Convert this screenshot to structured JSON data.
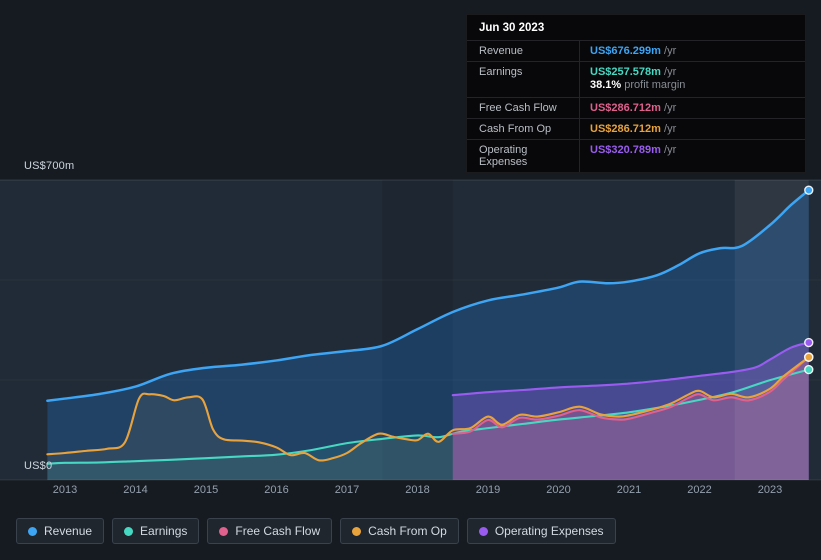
{
  "tooltip": {
    "date": "Jun 30 2023",
    "rows": [
      {
        "label": "Revenue",
        "value": "US$676.299m",
        "suffix": "/yr",
        "series": "revenue"
      },
      {
        "label": "Earnings",
        "value": "US$257.578m",
        "suffix": "/yr",
        "series": "earnings",
        "sub_bold": "38.1%",
        "sub_text": "profit margin"
      },
      {
        "label": "Free Cash Flow",
        "value": "US$286.712m",
        "suffix": "/yr",
        "series": "free_cash_flow"
      },
      {
        "label": "Cash From Op",
        "value": "US$286.712m",
        "suffix": "/yr",
        "series": "cash_from_op"
      },
      {
        "label": "Operating Expenses",
        "value": "US$320.789m",
        "suffix": "/yr",
        "series": "operating_expenses"
      }
    ]
  },
  "legend": [
    {
      "label": "Revenue",
      "series": "revenue"
    },
    {
      "label": "Earnings",
      "series": "earnings"
    },
    {
      "label": "Free Cash Flow",
      "series": "free_cash_flow"
    },
    {
      "label": "Cash From Op",
      "series": "cash_from_op"
    },
    {
      "label": "Operating Expenses",
      "series": "operating_expenses"
    }
  ],
  "chart_data": {
    "type": "area",
    "title": "",
    "xlabel": "",
    "ylabel": "US$ millions",
    "ylim": [
      0,
      700
    ],
    "y_tick_labels": {
      "top": "US$700m",
      "bottom": "US$0"
    },
    "x_ticks": [
      "2013",
      "2014",
      "2015",
      "2016",
      "2017",
      "2018",
      "2019",
      "2020",
      "2021",
      "2022",
      "2023"
    ],
    "x_range": [
      2012.75,
      2023.55
    ],
    "highlight_band": {
      "from": 2022.5,
      "to": 2023.55
    },
    "dark_band": {
      "from": 2017.5,
      "to": 2018.5
    },
    "series": [
      {
        "name": "Revenue",
        "key": "revenue",
        "color": "#3da5f4",
        "fill": "rgba(33,118,210,0.30)",
        "unit": "US$m",
        "points": [
          [
            2012.75,
            185
          ],
          [
            2013,
            190
          ],
          [
            2013.5,
            201
          ],
          [
            2014,
            218
          ],
          [
            2014.5,
            248
          ],
          [
            2015,
            262
          ],
          [
            2015.5,
            269
          ],
          [
            2016,
            279
          ],
          [
            2016.5,
            292
          ],
          [
            2017,
            301
          ],
          [
            2017.5,
            313
          ],
          [
            2018,
            352
          ],
          [
            2018.5,
            392
          ],
          [
            2019,
            419
          ],
          [
            2019.5,
            433
          ],
          [
            2020,
            449
          ],
          [
            2020.3,
            463
          ],
          [
            2020.7,
            459
          ],
          [
            2021,
            463
          ],
          [
            2021.4,
            478
          ],
          [
            2021.7,
            501
          ],
          [
            2022,
            529
          ],
          [
            2022.3,
            541
          ],
          [
            2022.6,
            546
          ],
          [
            2023,
            595
          ],
          [
            2023.3,
            642
          ],
          [
            2023.55,
            676.299
          ]
        ]
      },
      {
        "name": "Earnings",
        "key": "earnings",
        "color": "#46d8c2",
        "fill": "rgba(70,216,194,0.10)",
        "unit": "US$m",
        "points": [
          [
            2012.75,
            38
          ],
          [
            2013,
            40
          ],
          [
            2013.5,
            41
          ],
          [
            2014,
            44
          ],
          [
            2014.5,
            47
          ],
          [
            2015,
            51
          ],
          [
            2015.5,
            55
          ],
          [
            2016,
            59
          ],
          [
            2016.5,
            70
          ],
          [
            2017,
            86
          ],
          [
            2017.5,
            96
          ],
          [
            2018,
            104
          ],
          [
            2018.3,
            100
          ],
          [
            2018.6,
            112
          ],
          [
            2019,
            121
          ],
          [
            2019.5,
            131
          ],
          [
            2020,
            141
          ],
          [
            2020.5,
            149
          ],
          [
            2021,
            158
          ],
          [
            2021.5,
            171
          ],
          [
            2022,
            187
          ],
          [
            2022.5,
            206
          ],
          [
            2023,
            233
          ],
          [
            2023.55,
            257.578
          ]
        ]
      },
      {
        "name": "Free Cash Flow",
        "key": "free_cash_flow",
        "color": "#e0608e",
        "fill": "rgba(224,96,142,0.25)",
        "unit": "US$m",
        "points": [
          [
            2018.5,
            108
          ],
          [
            2018.75,
            113
          ],
          [
            2019,
            140
          ],
          [
            2019.2,
            123
          ],
          [
            2019.45,
            145
          ],
          [
            2019.7,
            141
          ],
          [
            2020,
            150
          ],
          [
            2020.3,
            163
          ],
          [
            2020.6,
            146
          ],
          [
            2020.85,
            141
          ],
          [
            2021,
            143
          ],
          [
            2021.3,
            156
          ],
          [
            2021.6,
            171
          ],
          [
            2021.85,
            192
          ],
          [
            2022,
            200
          ],
          [
            2022.2,
            186
          ],
          [
            2022.45,
            193
          ],
          [
            2022.7,
            186
          ],
          [
            2023,
            206
          ],
          [
            2023.2,
            236
          ],
          [
            2023.55,
            286.712
          ]
        ]
      },
      {
        "name": "Cash From Op",
        "key": "cash_from_op",
        "color": "#e8a33d",
        "fill": "rgba(232,163,61,0.08)",
        "unit": "US$m",
        "points": [
          [
            2012.75,
            60
          ],
          [
            2013,
            63
          ],
          [
            2013.3,
            68
          ],
          [
            2013.6,
            73
          ],
          [
            2013.85,
            88
          ],
          [
            2014.05,
            190
          ],
          [
            2014.2,
            200
          ],
          [
            2014.4,
            196
          ],
          [
            2014.55,
            186
          ],
          [
            2014.75,
            193
          ],
          [
            2014.95,
            188
          ],
          [
            2015.1,
            118
          ],
          [
            2015.25,
            95
          ],
          [
            2015.5,
            92
          ],
          [
            2015.75,
            88
          ],
          [
            2016,
            76
          ],
          [
            2016.2,
            58
          ],
          [
            2016.4,
            63
          ],
          [
            2016.6,
            46
          ],
          [
            2016.8,
            51
          ],
          [
            2017,
            63
          ],
          [
            2017.2,
            86
          ],
          [
            2017.45,
            108
          ],
          [
            2017.65,
            101
          ],
          [
            2017.85,
            95
          ],
          [
            2018,
            93
          ],
          [
            2018.15,
            108
          ],
          [
            2018.3,
            89
          ],
          [
            2018.5,
            116
          ],
          [
            2018.75,
            121
          ],
          [
            2019,
            148
          ],
          [
            2019.2,
            129
          ],
          [
            2019.45,
            152
          ],
          [
            2019.7,
            148
          ],
          [
            2020,
            158
          ],
          [
            2020.3,
            171
          ],
          [
            2020.6,
            153
          ],
          [
            2020.85,
            148
          ],
          [
            2021,
            151
          ],
          [
            2021.3,
            163
          ],
          [
            2021.6,
            179
          ],
          [
            2021.85,
            200
          ],
          [
            2022,
            208
          ],
          [
            2022.2,
            193
          ],
          [
            2022.45,
            201
          ],
          [
            2022.7,
            193
          ],
          [
            2023,
            213
          ],
          [
            2023.2,
            243
          ],
          [
            2023.55,
            286.712
          ]
        ]
      },
      {
        "name": "Operating Expenses",
        "key": "operating_expenses",
        "color": "#9a5cf0",
        "fill": "rgba(154,92,240,0.32)",
        "unit": "US$m",
        "points": [
          [
            2018.5,
            198
          ],
          [
            2019,
            205
          ],
          [
            2019.5,
            210
          ],
          [
            2020,
            216
          ],
          [
            2020.5,
            220
          ],
          [
            2021,
            225
          ],
          [
            2021.5,
            233
          ],
          [
            2022,
            243
          ],
          [
            2022.5,
            253
          ],
          [
            2022.8,
            263
          ],
          [
            2023,
            281
          ],
          [
            2023.3,
            309
          ],
          [
            2023.55,
            320.789
          ]
        ]
      }
    ]
  }
}
